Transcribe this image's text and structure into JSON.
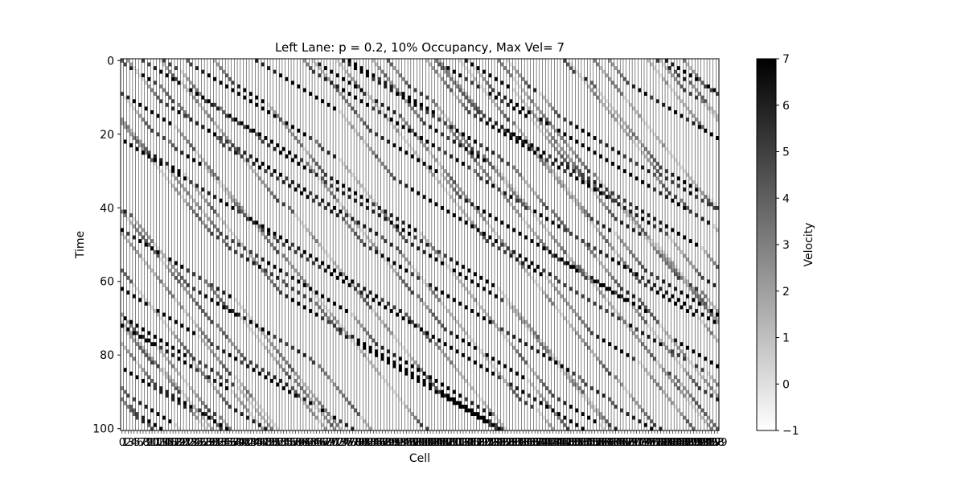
{
  "chart_data": {
    "type": "heatmap",
    "title": "Left Lane: p = 0.2, 10% Occupancy, Max Vel= 7",
    "xlabel": "Cell",
    "ylabel": "Time",
    "y_ticks": [
      0,
      20,
      40,
      60,
      80,
      100
    ],
    "y_range": [
      0,
      100
    ],
    "x_range": [
      0,
      199
    ],
    "x_tick_step": 1,
    "colorbar": {
      "label": "Velocity",
      "range": [
        -1,
        7
      ],
      "ticks": [
        -1,
        0,
        1,
        2,
        3,
        4,
        5,
        6,
        7
      ],
      "colormap": "Greys",
      "low_color": "#ffffff",
      "high_color": "#000000"
    },
    "background_value": -1,
    "max_velocity": 7,
    "occupancy": 0.1,
    "p": 0.2,
    "grid": false
  }
}
